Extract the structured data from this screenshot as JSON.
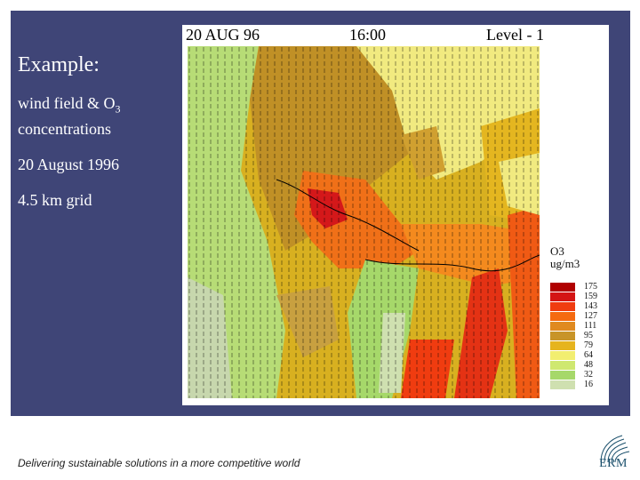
{
  "sidebar": {
    "title": "Example:",
    "line1_main": "wind field & O",
    "line1_sub": "3",
    "line1_tail": "concentrations",
    "date": "20 August 1996",
    "grid": "4.5 km grid"
  },
  "map": {
    "date_label": "20 AUG 96",
    "time_label": "16:00",
    "level_label": "Level -  1",
    "legend_title_1": "O3",
    "legend_title_2": "ug/m3",
    "legend": [
      {
        "label": "175",
        "color": "#b00000"
      },
      {
        "label": "159",
        "color": "#d41414"
      },
      {
        "label": "143",
        "color": "#f03c10"
      },
      {
        "label": "127",
        "color": "#f56a10"
      },
      {
        "label": "111",
        "color": "#e08a20"
      },
      {
        "label": "95",
        "color": "#c89428"
      },
      {
        "label": "79",
        "color": "#e6b41e"
      },
      {
        "label": "64",
        "color": "#f2ee70"
      },
      {
        "label": "48",
        "color": "#cfe870"
      },
      {
        "label": "32",
        "color": "#a6d86a"
      },
      {
        "label": "16",
        "color": "#cfe0b0"
      }
    ]
  },
  "footer": {
    "tagline": "Delivering sustainable solutions in a more competitive world"
  },
  "logo": {
    "text": "ERM"
  }
}
